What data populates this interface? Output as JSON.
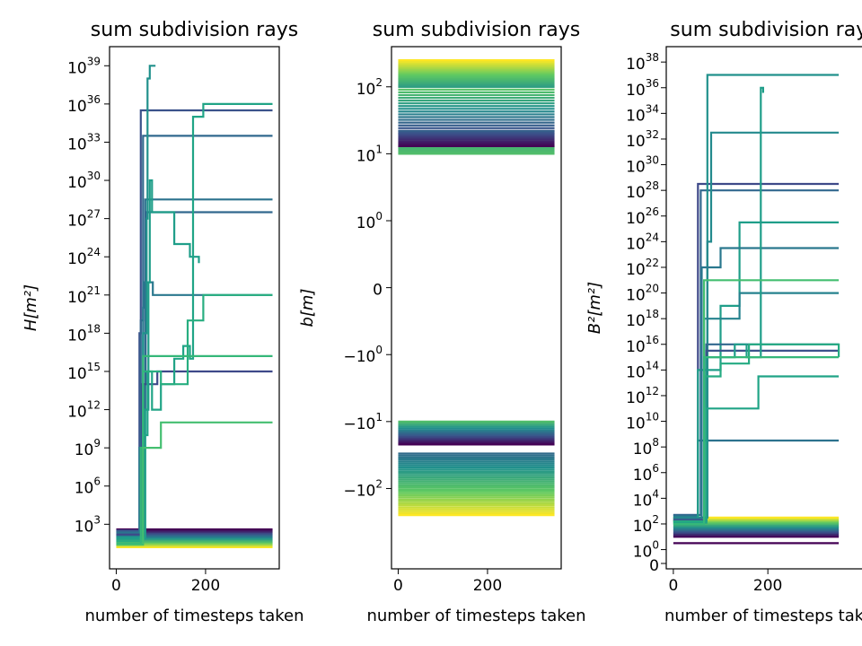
{
  "chart_data": [
    {
      "type": "line",
      "title": "sum subdivision rays",
      "xlabel": "number of timesteps taken",
      "ylabel": "H[m²]",
      "yscale": "log",
      "xlim": [
        -15,
        365
      ],
      "ylim_log10": [
        -0.5,
        40.5
      ],
      "xticks": [
        0,
        200
      ],
      "yticks": [
        {
          "base": "10",
          "exp": "3",
          "log10": 3
        },
        {
          "base": "10",
          "exp": "6",
          "log10": 6
        },
        {
          "base": "10",
          "exp": "9",
          "log10": 9
        },
        {
          "base": "10",
          "exp": "12",
          "log10": 12
        },
        {
          "base": "10",
          "exp": "15",
          "log10": 15
        },
        {
          "base": "10",
          "exp": "18",
          "log10": 18
        },
        {
          "base": "10",
          "exp": "21",
          "log10": 21
        },
        {
          "base": "10",
          "exp": "24",
          "log10": 24
        },
        {
          "base": "10",
          "exp": "27",
          "log10": 27
        },
        {
          "base": "10",
          "exp": "30",
          "log10": 30
        },
        {
          "base": "10",
          "exp": "33",
          "log10": 33
        },
        {
          "base": "10",
          "exp": "36",
          "log10": 36
        },
        {
          "base": "10",
          "exp": "39",
          "log10": 39
        }
      ],
      "band": {
        "from": 1.2,
        "to": 2.6,
        "count": 14,
        "x_end": 350
      },
      "series": [
        {
          "color": "#3b528b",
          "x": [
            0,
            48,
            52,
            55,
            350
          ],
          "y_log10": [
            2.5,
            2.5,
            18,
            35.5,
            35.5
          ]
        },
        {
          "color": "#31688e",
          "x": [
            0,
            50,
            55,
            60,
            350
          ],
          "y_log10": [
            2.4,
            2.4,
            19,
            33.5,
            33.5
          ]
        },
        {
          "color": "#2c728e",
          "x": [
            0,
            55,
            60,
            65,
            350
          ],
          "y_log10": [
            2.3,
            2.3,
            12,
            28.5,
            28.5
          ]
        },
        {
          "color": "#31688e",
          "x": [
            0,
            58,
            62,
            66,
            350
          ],
          "y_log10": [
            2.3,
            2.3,
            14,
            27.5,
            27.5
          ]
        },
        {
          "color": "#2a788e",
          "x": [
            0,
            48,
            52,
            60,
            62,
            80,
            82,
            350
          ],
          "y_log10": [
            2.3,
            2.3,
            9,
            20,
            22,
            22,
            21,
            21
          ]
        },
        {
          "color": "#3e4989",
          "x": [
            0,
            55,
            58,
            90,
            92,
            350
          ],
          "y_log10": [
            2.2,
            2.2,
            14,
            14,
            15,
            15
          ]
        },
        {
          "color": "#21918c",
          "x": [
            0,
            55,
            60,
            68,
            70,
            75,
            78,
            88
          ],
          "y_log10": [
            2.0,
            2.0,
            18,
            27,
            38,
            39,
            39,
            39
          ]
        },
        {
          "color": "#1f9e89",
          "x": [
            0,
            60,
            65,
            72,
            75,
            80,
            120,
            130,
            160,
            165,
            180,
            185
          ],
          "y_log10": [
            1.9,
            1.9,
            12,
            22,
            30,
            27.5,
            27.5,
            25,
            25,
            24,
            24,
            23.5
          ]
        },
        {
          "color": "#20a486",
          "x": [
            0,
            50,
            60,
            70,
            80,
            100,
            130,
            150,
            165,
            172,
            178,
            190,
            195,
            350
          ],
          "y_log10": [
            1.7,
            1.7,
            10,
            15,
            12,
            14,
            16,
            17,
            16,
            35,
            35,
            35,
            36,
            36
          ]
        },
        {
          "color": "#28ae80",
          "x": [
            0,
            50,
            60,
            90,
            100,
            130,
            150,
            160,
            190,
            195,
            350
          ],
          "y_log10": [
            1.7,
            1.7,
            15,
            15,
            14,
            14,
            14,
            19,
            19,
            21,
            21
          ]
        },
        {
          "color": "#35b779",
          "x": [
            0,
            50,
            55,
            60,
            350
          ],
          "y_log10": [
            1.5,
            1.5,
            9,
            16.2,
            16.2
          ]
        },
        {
          "color": "#44bf70",
          "x": [
            0,
            50,
            60,
            90,
            100,
            350
          ],
          "y_log10": [
            1.4,
            1.4,
            9,
            9,
            11,
            11
          ]
        }
      ]
    },
    {
      "type": "line",
      "title": "sum subdivision rays",
      "xlabel": "number of timesteps taken",
      "ylabel": "b[m]",
      "yscale": "symlog",
      "xlim": [
        -15,
        365
      ],
      "xticks": [
        0,
        200
      ],
      "yticks": [
        {
          "base": "10",
          "exp": "2",
          "value": 100
        },
        {
          "base": "10",
          "exp": "1",
          "value": 10
        },
        {
          "base": "10",
          "exp": "0",
          "value": 1
        },
        {
          "base": "",
          "exp": "",
          "label": "0",
          "value": 0
        },
        {
          "base": "−10",
          "exp": "0",
          "value": -1
        },
        {
          "base": "−10",
          "exp": "1",
          "value": -10
        },
        {
          "base": "−10",
          "exp": "2",
          "value": -100
        }
      ],
      "bands": [
        {
          "from": 20,
          "to": 100,
          "count": 18,
          "colors": "viridis-mid"
        },
        {
          "from": 100,
          "to": 250,
          "count": 18,
          "colors": "viridis-upper"
        },
        {
          "from": 10,
          "to": 13,
          "count": 6,
          "colors": "green"
        },
        {
          "from": 13,
          "to": 22,
          "count": 10,
          "colors": "purple-blue"
        },
        {
          "from": -10,
          "to": -22,
          "count": 14,
          "colors": "green-to-purple"
        },
        {
          "from": -30,
          "to": -250,
          "count": 32,
          "colors": "blue-to-yellow"
        }
      ]
    },
    {
      "type": "line",
      "title": "sum subdivision rays",
      "xlabel": "number of timesteps taken",
      "ylabel": "B²[m²]",
      "yscale": "log",
      "xlim": [
        -15,
        365
      ],
      "xticks": [
        0,
        200
      ],
      "yticks": [
        {
          "base": "0",
          "exp": "",
          "value": 0
        },
        {
          "base": "10",
          "exp": "0",
          "log10": 0
        },
        {
          "base": "10",
          "exp": "2",
          "log10": 2
        },
        {
          "base": "10",
          "exp": "4",
          "log10": 4
        },
        {
          "base": "10",
          "exp": "6",
          "log10": 6
        },
        {
          "base": "10",
          "exp": "8",
          "log10": 8
        },
        {
          "base": "10",
          "exp": "10",
          "log10": 10
        },
        {
          "base": "10",
          "exp": "12",
          "log10": 12
        },
        {
          "base": "10",
          "exp": "14",
          "log10": 14
        },
        {
          "base": "10",
          "exp": "16",
          "log10": 16
        },
        {
          "base": "10",
          "exp": "18",
          "log10": 18
        },
        {
          "base": "10",
          "exp": "20",
          "log10": 20
        },
        {
          "base": "10",
          "exp": "22",
          "log10": 22
        },
        {
          "base": "10",
          "exp": "24",
          "log10": 24
        },
        {
          "base": "10",
          "exp": "26",
          "log10": 26
        },
        {
          "base": "10",
          "exp": "28",
          "log10": 28
        },
        {
          "base": "10",
          "exp": "30",
          "log10": 30
        },
        {
          "base": "10",
          "exp": "32",
          "log10": 32
        },
        {
          "base": "10",
          "exp": "34",
          "log10": 34
        },
        {
          "base": "10",
          "exp": "36",
          "log10": 36
        },
        {
          "base": "10",
          "exp": "38",
          "log10": 38
        }
      ],
      "band": {
        "from": 1.0,
        "to": 2.5,
        "count": 16,
        "x_end": 350
      },
      "series": [
        {
          "color": "#440154",
          "x": [
            0,
            350
          ],
          "y_log10": [
            0.5,
            0.5
          ]
        },
        {
          "color": "#3e4989",
          "x": [
            0,
            50,
            52,
            350
          ],
          "y_log10": [
            2.7,
            2.7,
            28.5,
            28.5
          ]
        },
        {
          "color": "#31688e",
          "x": [
            0,
            55,
            58,
            350
          ],
          "y_log10": [
            2.7,
            2.7,
            28,
            28
          ]
        },
        {
          "color": "#2c728e",
          "x": [
            0,
            48,
            52,
            60,
            80,
            100,
            350
          ],
          "y_log10": [
            2.6,
            2.6,
            8.5,
            8.5,
            8.5,
            8.5,
            8.5
          ]
        },
        {
          "color": "#21918c",
          "x": [
            0,
            70,
            72,
            350
          ],
          "y_log10": [
            2.5,
            2.5,
            37,
            37
          ]
        },
        {
          "color": "#238a8d",
          "x": [
            0,
            70,
            72,
            80,
            350
          ],
          "y_log10": [
            2.5,
            2.5,
            24,
            32.5,
            32.5
          ]
        },
        {
          "color": "#1f9e89",
          "x": [
            0,
            50,
            52,
            75,
            100,
            140,
            350
          ],
          "y_log10": [
            2.4,
            2.4,
            14,
            14,
            19,
            25.5,
            25.5
          ]
        },
        {
          "color": "#2a788e",
          "x": [
            0,
            55,
            60,
            90,
            100,
            350
          ],
          "y_log10": [
            2.4,
            2.4,
            22,
            22,
            23.5,
            23.5
          ]
        },
        {
          "color": "#26828e",
          "x": [
            0,
            60,
            65,
            100,
            140,
            175,
            350
          ],
          "y_log10": [
            2.3,
            2.3,
            18,
            18,
            20,
            20,
            20
          ]
        },
        {
          "color": "#31688e",
          "x": [
            0,
            60,
            70,
            350
          ],
          "y_log10": [
            2.3,
            2.3,
            16,
            16
          ]
        },
        {
          "color": "#3b528b",
          "x": [
            0,
            60,
            70,
            350
          ],
          "y_log10": [
            2.3,
            2.3,
            15.5,
            15.5
          ]
        },
        {
          "color": "#1f9e89",
          "x": [
            0,
            60,
            70,
            130,
            155,
            175,
            185,
            190
          ],
          "y_log10": [
            2.2,
            2.2,
            15,
            16,
            15,
            15,
            36,
            35.6
          ]
        },
        {
          "color": "#25ab82",
          "x": [
            0,
            60,
            65,
            100,
            130,
            160,
            180,
            350
          ],
          "y_log10": [
            2.2,
            2.2,
            13.5,
            14.5,
            14.5,
            16,
            16,
            15
          ]
        },
        {
          "color": "#44bf70",
          "x": [
            0,
            60,
            65,
            350
          ],
          "y_log10": [
            2.1,
            2.1,
            21,
            21
          ]
        },
        {
          "color": "#20a486",
          "x": [
            0,
            60,
            70,
            120,
            175,
            180,
            350
          ],
          "y_log10": [
            2.1,
            2.1,
            11,
            11,
            11,
            13.5,
            13.5
          ]
        },
        {
          "color": "#35b779",
          "x": [
            0,
            60,
            65,
            350
          ],
          "y_log10": [
            2.0,
            2.0,
            15,
            15
          ]
        }
      ]
    }
  ]
}
